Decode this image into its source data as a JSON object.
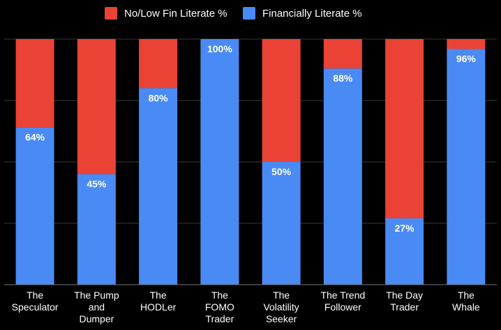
{
  "chart_data": {
    "type": "bar",
    "stacked": true,
    "percent_stacked": true,
    "categories": [
      "The Speculator",
      "The Pump and Dumper",
      "The HODLer",
      "The FOMO Trader",
      "The Volatility Seeker",
      "The Trend Follower",
      "The Day Trader",
      "The Whale"
    ],
    "category_lines": [
      [
        "The",
        "Speculator"
      ],
      [
        "The Pump",
        "and",
        "Dumper"
      ],
      [
        "The",
        "HODLer"
      ],
      [
        "The",
        "FOMO",
        "Trader"
      ],
      [
        "The",
        "Volatility",
        "Seeker"
      ],
      [
        "The Trend",
        "Follower"
      ],
      [
        "The Day",
        "Trader"
      ],
      [
        "The",
        "Whale"
      ]
    ],
    "series": [
      {
        "name": "Financially Literate %",
        "color": "#4a8af4",
        "values": [
          64,
          45,
          80,
          100,
          50,
          88,
          27,
          96
        ]
      },
      {
        "name": "No/Low Fin Literate %",
        "color": "#ea4335",
        "values": [
          36,
          55,
          20,
          0,
          50,
          12,
          73,
          4
        ]
      }
    ],
    "data_labels": [
      "64%",
      "45%",
      "80%",
      "100%",
      "50%",
      "88%",
      "27%",
      "96%"
    ],
    "legend_order": [
      "No/Low Fin Literate %",
      "Financially Literate %"
    ],
    "legend_position": "top",
    "ylim": [
      0,
      100
    ],
    "gridlines": [
      0,
      25,
      50,
      75,
      100
    ],
    "grid": true,
    "title": "",
    "xlabel": "",
    "ylabel": ""
  }
}
